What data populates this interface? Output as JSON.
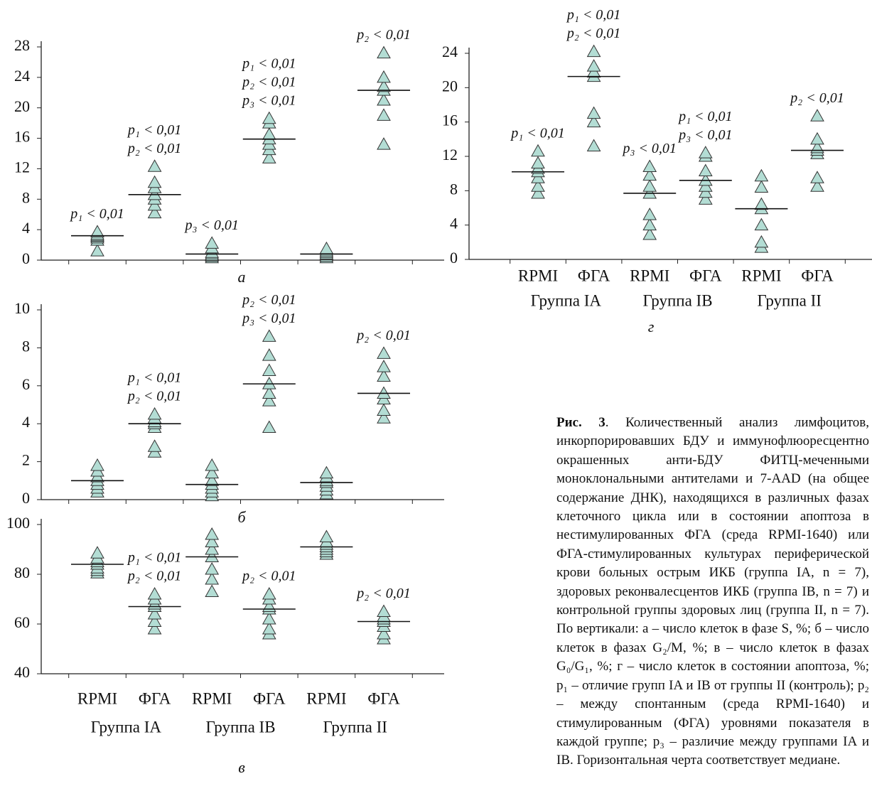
{
  "chart_data": [
    {
      "type": "strip",
      "panel_label": "а",
      "values": [
        [
          1.2,
          2.6,
          2.9,
          3.1,
          3.2,
          3.4,
          3.7
        ],
        [
          6.2,
          7.2,
          8.0,
          8.6,
          9.5,
          10.2,
          12.3
        ],
        [
          0.3,
          0.5,
          0.6,
          0.8,
          1.0,
          1.6,
          2.2
        ],
        [
          13.4,
          14.5,
          15.2,
          15.9,
          16.5,
          18.0,
          18.6
        ],
        [
          0.3,
          0.5,
          0.7,
          0.8,
          1.0,
          1.2,
          1.5
        ],
        [
          15.2,
          19.0,
          21.0,
          22.3,
          22.8,
          24.0,
          27.2
        ]
      ],
      "medians": [
        3.2,
        8.6,
        0.8,
        15.9,
        0.8,
        22.3
      ],
      "annotations": [
        [
          "p₁ < 0,01"
        ],
        [
          "p₁ < 0,01",
          "p₂ < 0,01"
        ],
        [
          "p₃ < 0,01"
        ],
        [
          "p₁ < 0,01",
          "p₂ < 0,01",
          "p₃ < 0,01"
        ],
        [],
        [
          "p₂ < 0,01"
        ]
      ],
      "ylim": [
        0,
        28
      ],
      "yticks": [
        0,
        4,
        8,
        12,
        16,
        20,
        24,
        28
      ],
      "marker_color": "#b3ddd4"
    },
    {
      "type": "strip",
      "panel_label": "б",
      "values": [
        [
          0.4,
          0.6,
          0.8,
          1.0,
          1.2,
          1.5,
          1.8
        ],
        [
          2.5,
          2.8,
          3.8,
          4.0,
          4.1,
          4.3,
          4.5
        ],
        [
          0.2,
          0.4,
          0.6,
          0.8,
          1.0,
          1.4,
          1.8
        ],
        [
          3.8,
          5.2,
          5.6,
          6.1,
          6.8,
          7.6,
          8.6
        ],
        [
          0.3,
          0.5,
          0.7,
          0.9,
          1.0,
          1.2,
          1.4
        ],
        [
          4.3,
          4.7,
          5.3,
          5.6,
          6.5,
          7.0,
          7.7
        ]
      ],
      "medians": [
        1.0,
        4.0,
        0.8,
        6.1,
        0.9,
        5.6
      ],
      "annotations": [
        [],
        [
          "p₁ < 0,01",
          "p₂ < 0,01"
        ],
        [],
        [
          "p₂ < 0,01",
          "p₃ < 0,01"
        ],
        [],
        [
          "p₂ < 0,01"
        ]
      ],
      "ylim": [
        0,
        10
      ],
      "yticks": [
        0,
        2,
        4,
        6,
        8,
        10
      ],
      "marker_color": "#b3ddd4"
    },
    {
      "type": "strip",
      "panel_label": "в",
      "categories": [
        "RPMI",
        "ФГА",
        "RPMI",
        "ФГА",
        "RPMI",
        "ФГА"
      ],
      "group_labels": [
        "Группа IA",
        "Группа IB",
        "Группа II"
      ],
      "values": [
        [
          80.5,
          81.5,
          82.5,
          84,
          85,
          86.5,
          88.5
        ],
        [
          58,
          61,
          64,
          67,
          68,
          70,
          72
        ],
        [
          73,
          78,
          82,
          87,
          90,
          93,
          96
        ],
        [
          56,
          58,
          62,
          66,
          67,
          70,
          72
        ],
        [
          88,
          89,
          90,
          91,
          92,
          93,
          95
        ],
        [
          54,
          56,
          59,
          61,
          62,
          63,
          65
        ]
      ],
      "medians": [
        84,
        67,
        87,
        66,
        91,
        61
      ],
      "annotations": [
        [],
        [
          "p₁ < 0,01",
          "p₂ < 0,01"
        ],
        [],
        [
          "p₂ < 0,01"
        ],
        [],
        [
          "p₂ < 0,01"
        ]
      ],
      "ylim": [
        40,
        100
      ],
      "yticks": [
        40,
        60,
        80,
        100
      ],
      "marker_color": "#b3ddd4"
    },
    {
      "type": "strip",
      "panel_label": "г",
      "categories": [
        "RPMI",
        "ФГА",
        "RPMI",
        "ФГА",
        "RPMI",
        "ФГА"
      ],
      "group_labels": [
        "Группа IA",
        "Группа IB",
        "Группа II"
      ],
      "values": [
        [
          7.7,
          8.5,
          9.5,
          10.2,
          10.6,
          11.2,
          12.6
        ],
        [
          13.2,
          16,
          17,
          21.3,
          21.8,
          22.5,
          24.2
        ],
        [
          2.9,
          4,
          5.2,
          7.7,
          8.5,
          9.8,
          10.8
        ],
        [
          7,
          7.8,
          8.5,
          9.2,
          10.3,
          12,
          12.4
        ],
        [
          1.4,
          2,
          4,
          5.9,
          6.4,
          8.4,
          9.7
        ],
        [
          8.5,
          9.5,
          12.3,
          12.7,
          13,
          14,
          16.7
        ]
      ],
      "medians": [
        10.2,
        21.3,
        7.7,
        9.2,
        5.9,
        12.7
      ],
      "annotations": [
        [
          "p₁ < 0,01"
        ],
        [
          "p₁ < 0,01",
          "p₂ < 0,01"
        ],
        [
          "p₃ < 0,01"
        ],
        [
          "p₁ < 0,01",
          "p₃ < 0,01"
        ],
        [],
        [
          "p₂ < 0,01"
        ]
      ],
      "ylim": [
        0,
        24
      ],
      "yticks": [
        0,
        4,
        8,
        12,
        16,
        20,
        24
      ],
      "marker_color": "#b3ddd4"
    }
  ],
  "caption": {
    "label": "Рис. 3",
    "text": ". Количественный анализ лимфоцитов, инкорпорировавших БДУ и иммунофлюоресцентно окрашенных анти-БДУ ФИТЦ-меченными моноклональными антителами и 7-AAD (на общее содержание ДНК), находящихся в различных фазах клеточного цикла или в состоянии апоптоза в нестимулированных ФГА (среда RPMI-1640) или ФГА-стимулированных культурах периферической крови больных острым ИКБ (группа IA, n = 7), здоровых реконвалесцентов ИКБ (группа IB, n = 7) и контрольной группы здоровых лиц (группа II, n = 7). По вертикали: а – число клеток в фазе S, %; б – число клеток в фазах G₂/M, %; в – число клеток в фазах G₀/G₁, %; г – число клеток в состоянии апоптоза, %; p₁ – отличие групп IA и IB от группы II (контроль); p₂ – между спонтанным (среда RPMI-1640) и стимулированным (ФГА) уровнями показателя в каждой группе; p₃ – различие между группами IA и IB. Горизонтальная черта соответствует медиане."
  }
}
